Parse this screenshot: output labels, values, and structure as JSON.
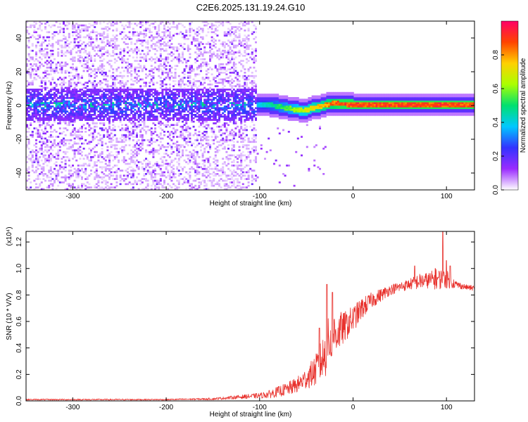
{
  "title": "C2E6.2025.131.19.24.G10",
  "colors": {
    "snr_line": "#e8312c",
    "colormap": [
      "#ffffff",
      "#9a2bff",
      "#3333ff",
      "#00c8ff",
      "#00e070",
      "#aaff00",
      "#ffd000",
      "#ff4400",
      "#ff0066"
    ]
  },
  "chart_data": [
    {
      "type": "heatmap",
      "xlabel": "Height of straight line (km)",
      "ylabel": "Frequency (Hz)",
      "xlim": [
        -350,
        130
      ],
      "ylim": [
        -50,
        50
      ],
      "xticks": [
        -300,
        -200,
        -100,
        0,
        100
      ],
      "yticks": [
        -40,
        -20,
        0,
        20,
        40
      ],
      "colorbar": {
        "label": "Normalized spectral amplitude",
        "range": [
          0,
          1
        ],
        "ticks": [
          0.0,
          0.2,
          0.4,
          0.6,
          0.8
        ]
      },
      "signal_center_track": {
        "x": [
          -110,
          -100,
          -90,
          -80,
          -75,
          -70,
          -65,
          -60,
          -55,
          -50,
          -45,
          -40,
          -35,
          -30,
          -25,
          -20,
          -15,
          -10,
          0,
          20,
          40,
          60,
          80,
          100,
          130
        ],
        "y": [
          0,
          0,
          0,
          -1,
          -1.5,
          -2,
          -2.5,
          -3,
          -3.5,
          -3,
          -2,
          -1.5,
          -1,
          0,
          0.5,
          1,
          0.5,
          0.5,
          0,
          0,
          0,
          0,
          0,
          0,
          0
        ]
      },
      "noise_region": {
        "x_range": [
          -350,
          -105
        ],
        "y_range": [
          -50,
          50
        ]
      }
    },
    {
      "type": "line",
      "xlabel": "Height of straight line (km)",
      "ylabel": "SNR (10 * V/V)",
      "y_multiplier": "(x10⁴)",
      "xlim": [
        -350,
        130
      ],
      "ylim": [
        0,
        1.28
      ],
      "xticks": [
        -300,
        -200,
        -100,
        0,
        100
      ],
      "yticks": [
        0.0,
        0.2,
        0.4,
        0.6,
        0.8,
        1.0,
        1.2
      ],
      "series": [
        {
          "x": [
            -350,
            -300,
            -250,
            -200,
            -150,
            -120,
            -100,
            -90,
            -80,
            -70,
            -60,
            -50,
            -40,
            -30,
            -25,
            -20,
            -10,
            0,
            10,
            20,
            30,
            40,
            50,
            60,
            70,
            80,
            90,
            100,
            110,
            120,
            130
          ],
          "values": [
            0.01,
            0.01,
            0.01,
            0.01,
            0.015,
            0.03,
            0.04,
            0.05,
            0.07,
            0.09,
            0.12,
            0.17,
            0.23,
            0.35,
            0.45,
            0.5,
            0.55,
            0.62,
            0.7,
            0.76,
            0.8,
            0.84,
            0.86,
            0.88,
            0.9,
            0.91,
            0.92,
            0.92,
            0.88,
            0.86,
            0.85
          ],
          "noise_amplitude": [
            0.005,
            0.005,
            0.005,
            0.005,
            0.008,
            0.015,
            0.02,
            0.03,
            0.04,
            0.05,
            0.06,
            0.08,
            0.12,
            0.18,
            0.22,
            0.18,
            0.12,
            0.1,
            0.08,
            0.06,
            0.05,
            0.04,
            0.04,
            0.04,
            0.06,
            0.06,
            0.08,
            0.07,
            0.03,
            0.02,
            0.02
          ],
          "spikes": [
            {
              "x": -28,
              "y": 0.88
            },
            {
              "x": -22,
              "y": 0.82
            },
            {
              "x": -36,
              "y": 0.55
            },
            {
              "x": 66,
              "y": 1.02
            },
            {
              "x": 88,
              "y": 1.0
            },
            {
              "x": 96,
              "y": 1.28
            },
            {
              "x": 100,
              "y": 1.06
            },
            {
              "x": 104,
              "y": 1.02
            }
          ]
        }
      ]
    }
  ]
}
